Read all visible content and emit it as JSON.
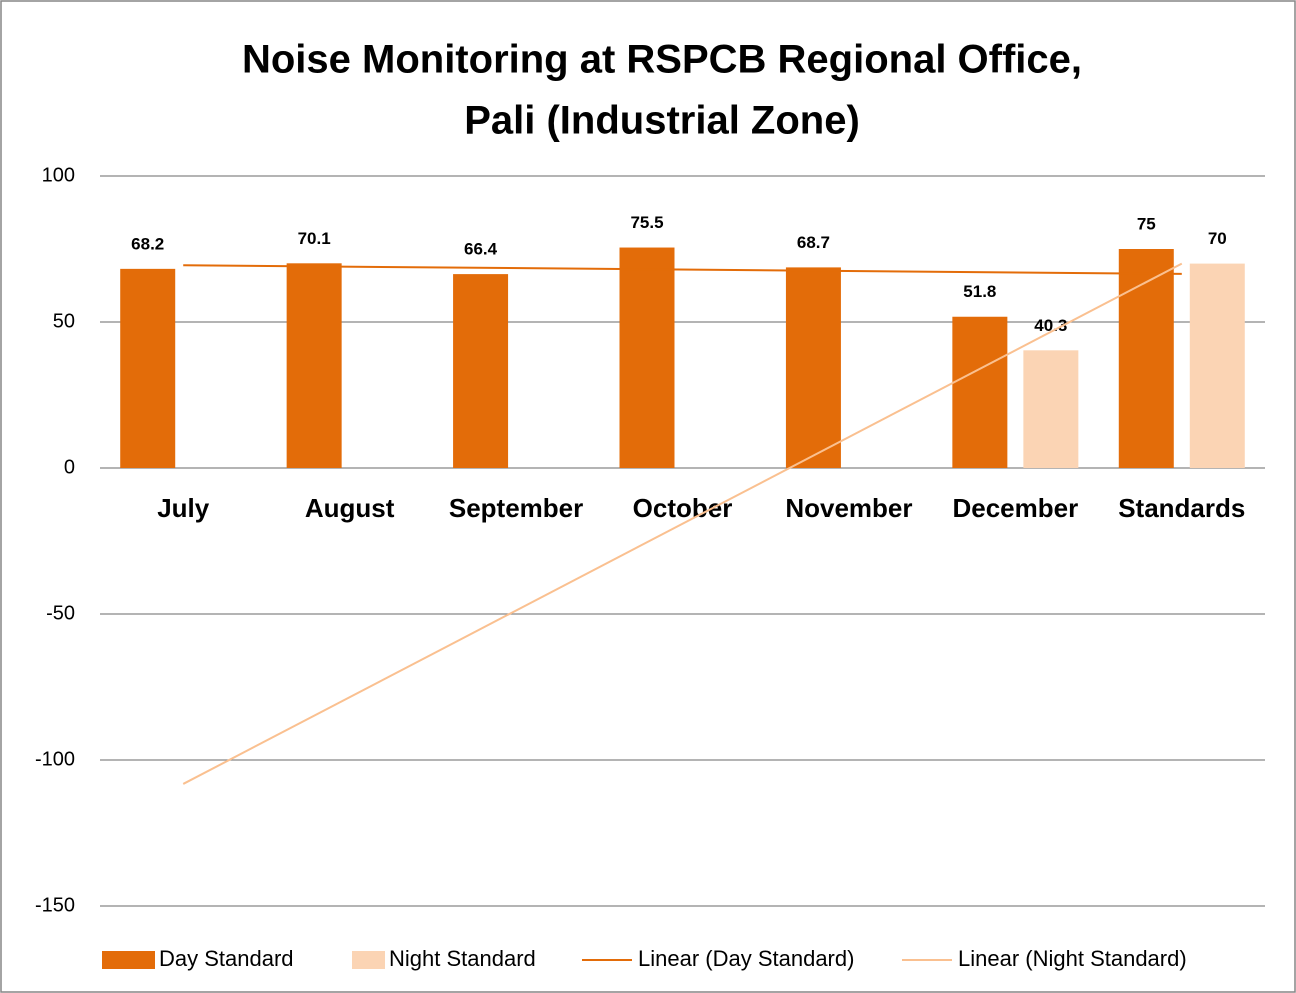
{
  "chart_data": {
    "type": "bar",
    "title": [
      "Noise Monitoring at RSPCB Regional Office,",
      "Pali (Industrial Zone)"
    ],
    "categories": [
      "July",
      "August",
      "September",
      "October",
      "November",
      "December",
      "Standards"
    ],
    "series": [
      {
        "name": "Day Standard",
        "color": "#e36c09",
        "values": [
          68.2,
          70.1,
          66.4,
          75.5,
          68.7,
          51.8,
          75
        ],
        "trendline": {
          "name": "Linear (Day Standard)",
          "color": "#e36c09"
        }
      },
      {
        "name": "Night Standard",
        "color": "#fbd4b4",
        "values": [
          null,
          null,
          null,
          null,
          null,
          40.3,
          70
        ],
        "trendline": {
          "name": "Linear (Night Standard)",
          "color": "#fac090"
        }
      }
    ],
    "ylim": [
      -150,
      100
    ],
    "yticks": [
      -150,
      -100,
      -50,
      0,
      50,
      100
    ],
    "grid": true,
    "legend": "bottom"
  }
}
